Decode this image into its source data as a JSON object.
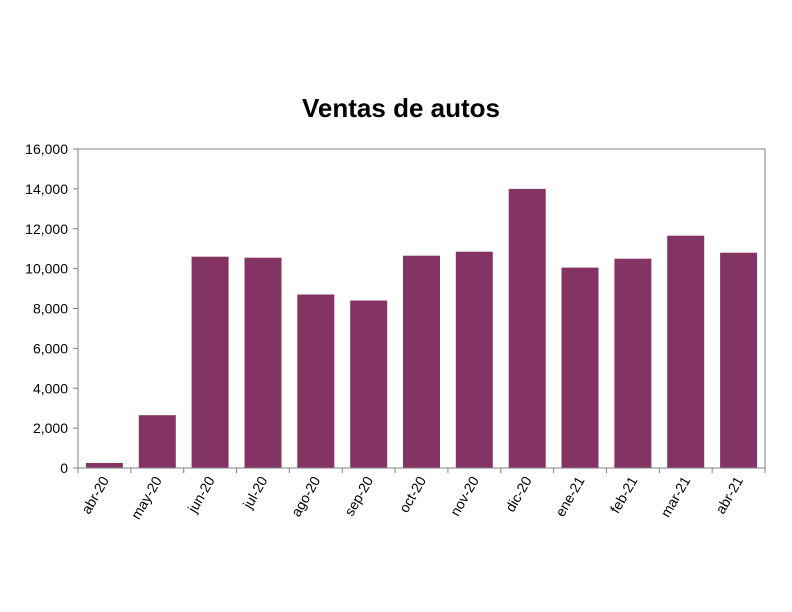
{
  "chart_data": {
    "type": "bar",
    "title": "Ventas de autos",
    "categories": [
      "abr-20",
      "may-20",
      "jun-20",
      "jul-20",
      "ago-20",
      "sep-20",
      "oct-20",
      "nov-20",
      "dic-20",
      "ene-21",
      "feb-21",
      "mar-21",
      "abr-21"
    ],
    "values": [
      250,
      2650,
      10600,
      10550,
      8700,
      8400,
      10650,
      10850,
      14000,
      10050,
      10500,
      11650,
      10800
    ],
    "ylim": [
      0,
      16000
    ],
    "yticks": [
      0,
      2000,
      4000,
      6000,
      8000,
      10000,
      12000,
      14000,
      16000
    ],
    "ytick_labels": [
      "0",
      "2,000",
      "4,000",
      "6,000",
      "8,000",
      "10,000",
      "12,000",
      "14,000",
      "16,000"
    ],
    "xlabel": "",
    "ylabel": "",
    "grid": false,
    "legend": "none",
    "bar_color": "#843463"
  }
}
